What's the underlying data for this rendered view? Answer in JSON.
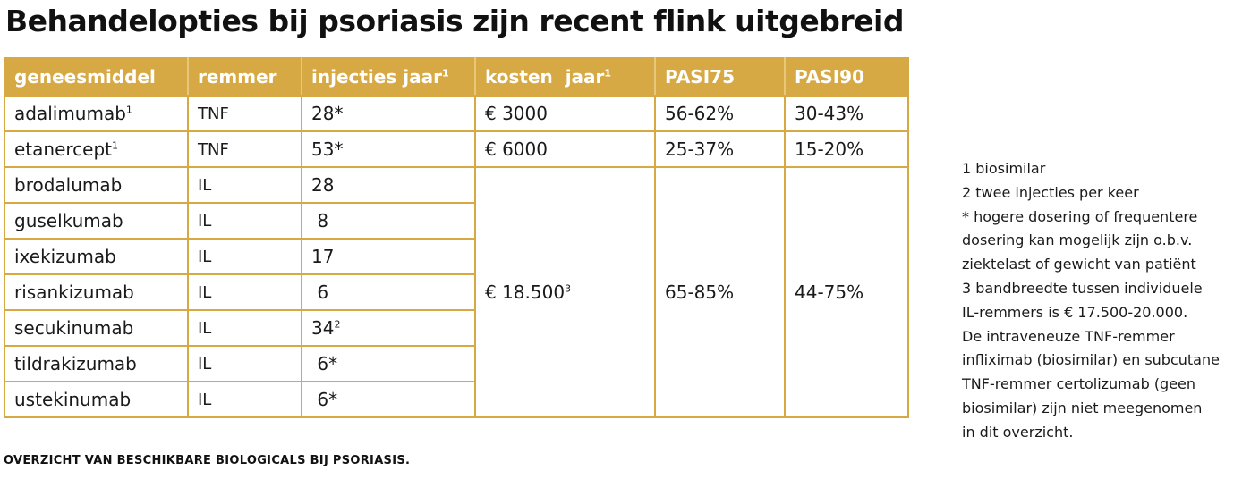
{
  "title": "Behandelopties bij psoriasis zijn recent flink uitgebreid",
  "table": {
    "headers": [
      {
        "label": "geneesmiddel",
        "sup": ""
      },
      {
        "label": "remmer",
        "sup": ""
      },
      {
        "label": "injecties jaar",
        "sup": "1"
      },
      {
        "label": "kosten  jaar",
        "sup": "1"
      },
      {
        "label": "PASI75",
        "sup": ""
      },
      {
        "label": "PASI90",
        "sup": ""
      }
    ],
    "rows": [
      {
        "drug": "adalimumab",
        "drug_sup": "1",
        "remmer": "TNF",
        "injections": "28*",
        "inj_sup": "",
        "kosten": "€ 3000",
        "kosten_sup": "",
        "pasi75": "56-62%",
        "pasi90": "30-43%"
      },
      {
        "drug": "etanercept",
        "drug_sup": "1",
        "remmer": "TNF",
        "injections": "53*",
        "inj_sup": "",
        "kosten": "€ 6000",
        "kosten_sup": "",
        "pasi75": "25-37%",
        "pasi90": "15-20%"
      },
      {
        "drug": "brodalumab",
        "drug_sup": "",
        "remmer": "IL",
        "injections": "28",
        "inj_sup": ""
      },
      {
        "drug": "guselkumab",
        "drug_sup": "",
        "remmer": "IL",
        "injections": " 8",
        "inj_sup": ""
      },
      {
        "drug": "ixekizumab",
        "drug_sup": "",
        "remmer": "IL",
        "injections": "17",
        "inj_sup": ""
      },
      {
        "drug": "risankizumab",
        "drug_sup": "",
        "remmer": "IL",
        "injections": " 6",
        "inj_sup": ""
      },
      {
        "drug": "secukinumab",
        "drug_sup": "",
        "remmer": "IL",
        "injections": "34",
        "inj_sup": "2"
      },
      {
        "drug": "tildrakizumab",
        "drug_sup": "",
        "remmer": "IL",
        "injections": " 6*",
        "inj_sup": ""
      },
      {
        "drug": "ustekinumab",
        "drug_sup": "",
        "remmer": "IL",
        "injections": " 6*",
        "inj_sup": ""
      }
    ],
    "merged": {
      "kosten": "€ 18.500",
      "kosten_sup": "3",
      "pasi75": "65-85%",
      "pasi90": "44-75%"
    }
  },
  "notes": [
    "1 biosimilar",
    "2 twee injecties per keer",
    "* hogere dosering of frequentere",
    "dosering kan mogelijk zijn o.b.v.",
    "ziektelast of gewicht van patiënt",
    "3 bandbreedte tussen individuele",
    "IL-remmers is € 17.500-20.000.",
    "De intraveneuze TNF-remmer",
    "infliximab (biosimilar) en subcutane",
    "TNF-remmer certolizumab (geen",
    "biosimilar) zijn niet meegenomen",
    "in dit overzicht."
  ],
  "caption": "OVERZICHT VAN BESCHIKBARE BIOLOGICALS BIJ PSORIASIS.",
  "colors": {
    "accent": "#d7a945",
    "header_text": "#ffffff",
    "text": "#1a1a1a"
  }
}
